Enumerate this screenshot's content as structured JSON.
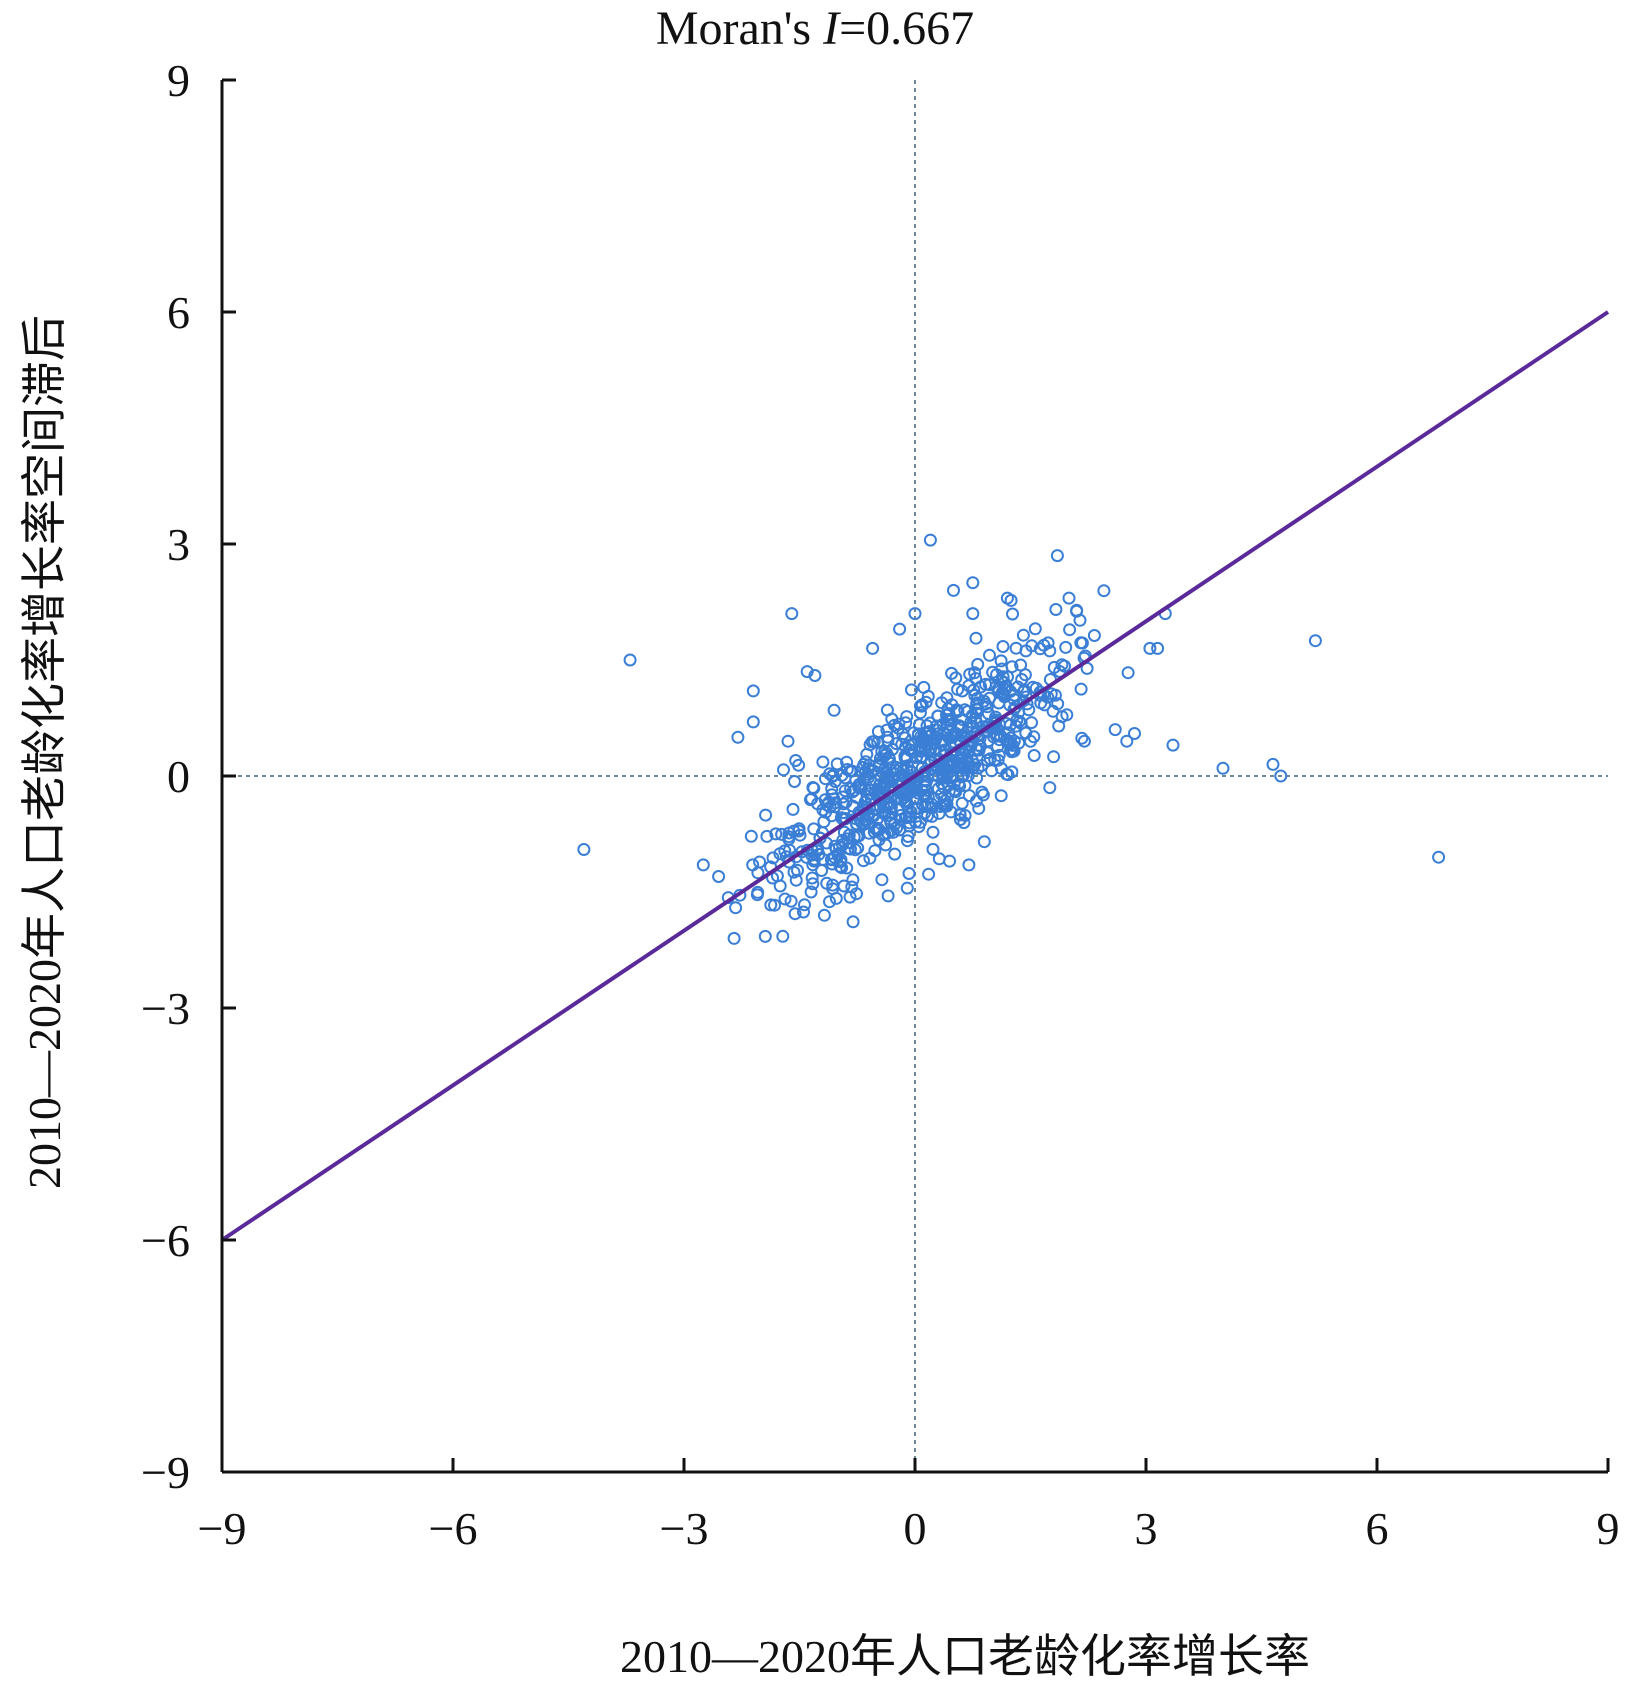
{
  "chart_data": {
    "type": "scatter",
    "title_prefix": "Moran's ",
    "title_italic": "I",
    "title_suffix": "=0.667",
    "xlabel": "2010—2020年人口老龄化率增长率",
    "ylabel": "2010—2020年人口老龄化率增长率空间滞后",
    "xlim": [
      -9,
      9
    ],
    "ylim": [
      -9,
      9
    ],
    "xticks": [
      -9,
      -6,
      -3,
      0,
      3,
      6,
      9
    ],
    "yticks": [
      -9,
      -6,
      -3,
      0,
      3,
      6,
      9
    ],
    "xtick_labels": [
      "−9",
      "−6",
      "−3",
      "0",
      "3",
      "6",
      "9"
    ],
    "ytick_labels": [
      "−9",
      "−6",
      "−3",
      "0",
      "3",
      "6",
      "9"
    ],
    "reference_lines": {
      "x": 0,
      "y": 0,
      "style": "dotted"
    },
    "fit_line": {
      "x": [
        -9,
        9
      ],
      "y": [
        -6,
        6
      ],
      "slope": 0.667
    },
    "grid": false,
    "point_style": "open-circle",
    "colors": {
      "points": "#3a7fd5",
      "fit_line": "#5b2a9a",
      "reference": "#6f8898",
      "axis": "#111111"
    },
    "outliers": [
      [
        -4.3,
        -0.95
      ],
      [
        -3.7,
        1.5
      ],
      [
        -2.3,
        0.5
      ],
      [
        -2.1,
        1.1
      ],
      [
        -2.1,
        0.7
      ],
      [
        -1.6,
        2.1
      ],
      [
        -1.4,
        1.35
      ],
      [
        -1.3,
        1.3
      ],
      [
        -1.65,
        0.45
      ],
      [
        -1.55,
        0.2
      ],
      [
        -1.05,
        0.85
      ],
      [
        0.2,
        3.05
      ],
      [
        0.75,
        2.5
      ],
      [
        0.75,
        2.1
      ],
      [
        1.85,
        2.85
      ],
      [
        2.0,
        2.3
      ],
      [
        3.25,
        2.1
      ],
      [
        3.05,
        1.65
      ],
      [
        3.15,
        1.65
      ],
      [
        3.35,
        0.4
      ],
      [
        2.6,
        0.6
      ],
      [
        2.85,
        0.55
      ],
      [
        2.75,
        0.45
      ],
      [
        4.0,
        0.1
      ],
      [
        4.65,
        0.15
      ],
      [
        4.75,
        0.0
      ],
      [
        5.2,
        1.75
      ],
      [
        6.8,
        -1.05
      ],
      [
        -2.75,
        -1.15
      ],
      [
        -2.55,
        -1.3
      ],
      [
        -2.35,
        -2.1
      ],
      [
        -0.35,
        -1.55
      ],
      [
        -0.1,
        -1.45
      ],
      [
        0.45,
        -1.1
      ],
      [
        0.7,
        -1.15
      ],
      [
        0.9,
        -0.85
      ],
      [
        1.75,
        -0.15
      ],
      [
        1.8,
        0.25
      ],
      [
        2.2,
        0.45
      ],
      [
        -0.55,
        1.65
      ],
      [
        -0.2,
        1.9
      ],
      [
        0.0,
        2.1
      ],
      [
        0.5,
        2.4
      ],
      [
        1.2,
        2.3
      ]
    ],
    "cluster": {
      "count": 760,
      "seed": 20200811,
      "slope": 0.667,
      "x_range": [
        -2.5,
        2.8
      ],
      "y_range": [
        -2.25,
        2.45
      ],
      "residual_sd": 0.45
    }
  }
}
